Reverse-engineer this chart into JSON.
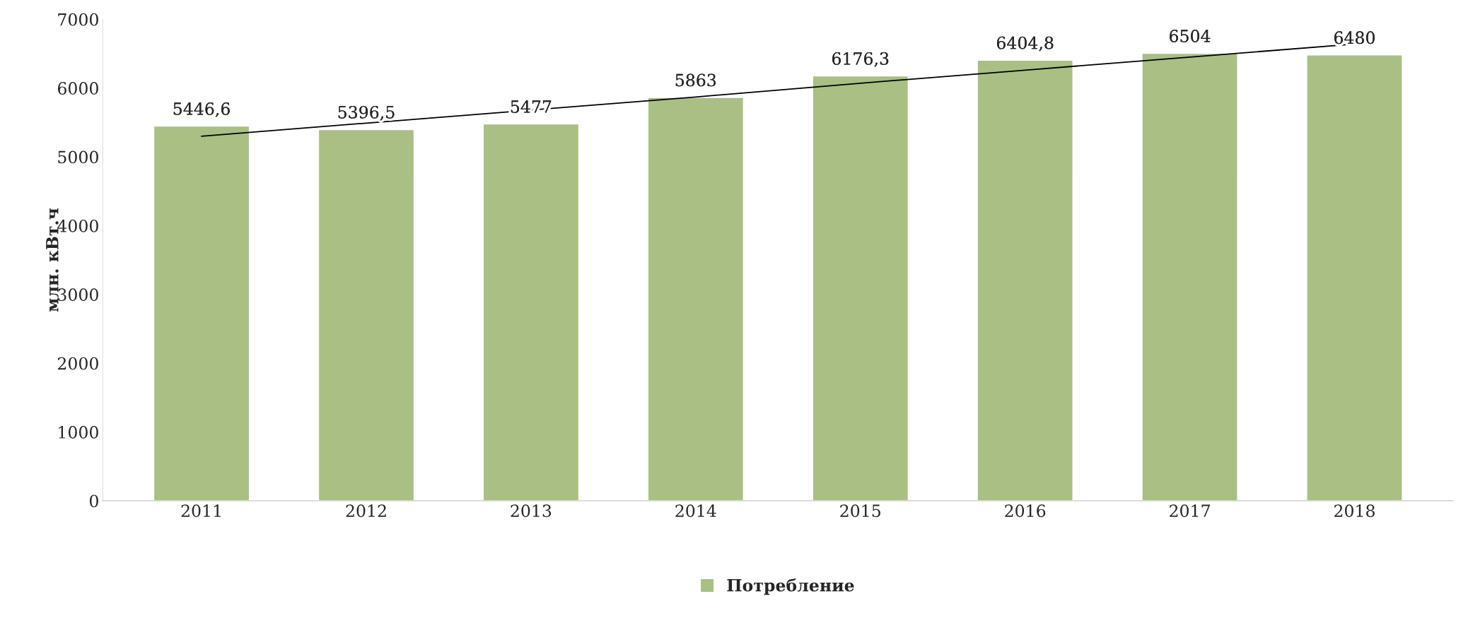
{
  "chart_data": {
    "type": "bar",
    "ylabel": "млн. кВт.ч",
    "categories": [
      "2011",
      "2012",
      "2013",
      "2014",
      "2015",
      "2016",
      "2017",
      "2018"
    ],
    "series": [
      {
        "name": "Потребление",
        "color": "#a9bf84",
        "values": [
          5446.6,
          5396.5,
          5477,
          5863,
          6176.3,
          6404.8,
          6504,
          6480
        ],
        "value_labels": [
          "5446,6",
          "5396,5",
          "5477",
          "5863",
          "6176,3",
          "6404,8",
          "6504",
          "6480"
        ]
      },
      {
        "type": "line",
        "color": "#000000",
        "values": [
          5300,
          5490,
          5680,
          5870,
          6070,
          6260,
          6450,
          6640
        ]
      }
    ],
    "ylim": [
      0,
      7000
    ],
    "yticks": [
      0,
      1000,
      2000,
      3000,
      4000,
      5000,
      6000,
      7000
    ],
    "grid": false,
    "legend": "bottom"
  }
}
